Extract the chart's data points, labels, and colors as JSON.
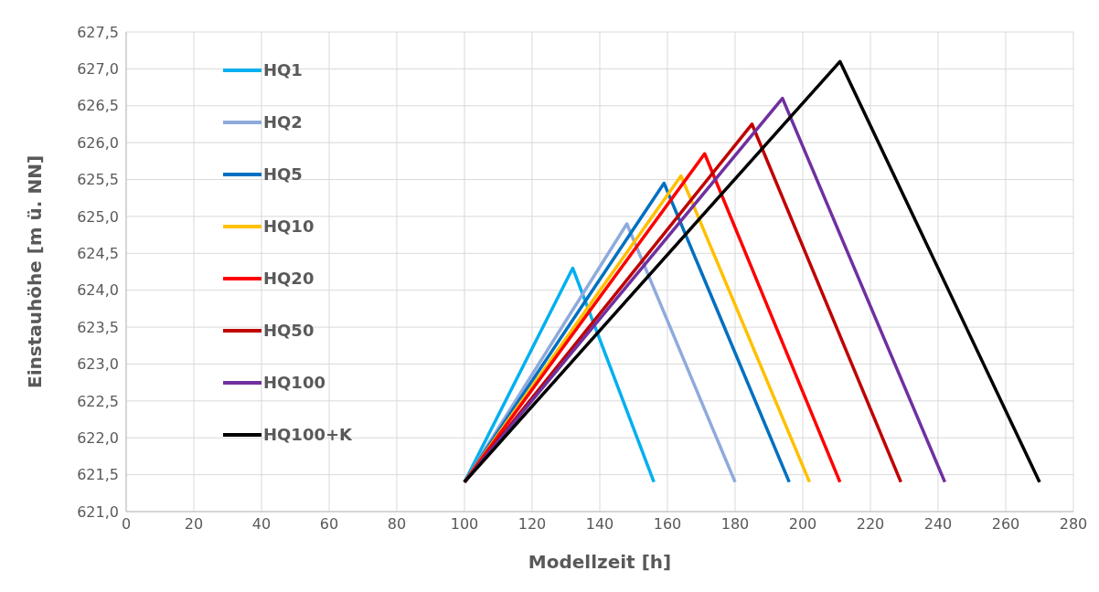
{
  "chart_data": {
    "type": "line",
    "xlabel": "Modellzeit [h]",
    "ylabel": "Einstauhöhe [m ü. NN]",
    "xlim": [
      0,
      280
    ],
    "xticks": [
      0,
      20,
      40,
      60,
      80,
      100,
      120,
      140,
      160,
      180,
      200,
      220,
      240,
      260,
      280
    ],
    "ylim": [
      621.0,
      627.5
    ],
    "yticks": [
      {
        "value": 621.0,
        "label": "621,0"
      },
      {
        "value": 621.5,
        "label": "621,5"
      },
      {
        "value": 622.0,
        "label": "622,0"
      },
      {
        "value": 622.5,
        "label": "622,5"
      },
      {
        "value": 623.0,
        "label": "623,0"
      },
      {
        "value": 623.5,
        "label": "623,5"
      },
      {
        "value": 624.0,
        "label": "624,0"
      },
      {
        "value": 624.5,
        "label": "624,5"
      },
      {
        "value": 625.0,
        "label": "625,0"
      },
      {
        "value": 625.5,
        "label": "625,5"
      },
      {
        "value": 626.0,
        "label": "626,0"
      },
      {
        "value": 626.5,
        "label": "626,5"
      },
      {
        "value": 627.0,
        "label": "627,0"
      },
      {
        "value": 627.5,
        "label": "627,5"
      }
    ],
    "grid": true,
    "legend": "top left",
    "marker": "none",
    "line_style": "solid",
    "series": [
      {
        "name": "HQ1",
        "color": "#00b0f0",
        "x": [
          100,
          132,
          156
        ],
        "values": [
          621.4,
          624.3,
          621.4
        ]
      },
      {
        "name": "HQ2",
        "color": "#8faadc",
        "x": [
          100,
          148,
          180
        ],
        "values": [
          621.4,
          624.9,
          621.4
        ]
      },
      {
        "name": "HQ5",
        "color": "#0070c0",
        "x": [
          100,
          159,
          196
        ],
        "values": [
          621.4,
          625.45,
          621.4
        ]
      },
      {
        "name": "HQ10",
        "color": "#ffc000",
        "x": [
          100,
          164,
          202
        ],
        "values": [
          621.4,
          625.55,
          621.4
        ]
      },
      {
        "name": "HQ20",
        "color": "#ff0000",
        "x": [
          100,
          171,
          211
        ],
        "values": [
          621.4,
          625.85,
          621.4
        ]
      },
      {
        "name": "HQ50",
        "color": "#c00000",
        "x": [
          100,
          185,
          229
        ],
        "values": [
          621.4,
          626.25,
          621.4
        ]
      },
      {
        "name": "HQ100",
        "color": "#7030a0",
        "x": [
          100,
          194,
          242
        ],
        "values": [
          621.4,
          626.6,
          621.4
        ]
      },
      {
        "name": "HQ100+K",
        "color": "#000000",
        "x": [
          100,
          211,
          270
        ],
        "values": [
          621.4,
          627.1,
          621.4
        ]
      }
    ]
  }
}
